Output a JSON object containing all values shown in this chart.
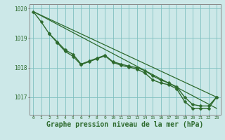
{
  "background_color": "#cce8e8",
  "plot_bg_color": "#cce8e8",
  "grid_color": "#80c0c0",
  "line_color": "#2d6a2d",
  "marker_color": "#2d6a2d",
  "xlabel": "Graphe pression niveau de la mer (hPa)",
  "xlabel_fontsize": 7,
  "xlim": [
    -0.5,
    23.5
  ],
  "ylim": [
    1016.4,
    1020.15
  ],
  "yticks": [
    1017,
    1018,
    1019,
    1020
  ],
  "xticks": [
    0,
    1,
    2,
    3,
    4,
    5,
    6,
    7,
    8,
    9,
    10,
    11,
    12,
    13,
    14,
    15,
    16,
    17,
    18,
    19,
    20,
    21,
    22,
    23
  ],
  "series": [
    {
      "x": [
        0,
        23
      ],
      "y": [
        1019.9,
        1017.0
      ],
      "marker": null,
      "markersize": 0,
      "linewidth": 0.9
    },
    {
      "x": [
        0,
        23
      ],
      "y": [
        1019.9,
        1016.62
      ],
      "marker": null,
      "markersize": 0,
      "linewidth": 0.9
    },
    {
      "x": [
        0,
        1,
        2,
        3,
        4,
        5,
        6,
        7,
        8,
        9,
        10,
        11,
        12,
        13,
        14,
        15,
        16,
        17,
        18,
        19,
        20,
        21,
        22,
        23
      ],
      "y": [
        1019.9,
        1019.55,
        1019.15,
        1018.88,
        1018.6,
        1018.45,
        1018.12,
        1018.22,
        1018.32,
        1018.42,
        1018.2,
        1018.12,
        1018.05,
        1018.0,
        1017.9,
        1017.72,
        1017.58,
        1017.48,
        1017.35,
        1017.0,
        1016.75,
        1016.7,
        1016.7,
        1017.0
      ],
      "marker": "D",
      "markersize": 2.5,
      "linewidth": 1.0
    },
    {
      "x": [
        2,
        3,
        4,
        5,
        6,
        7,
        8,
        9,
        10,
        11,
        12,
        13,
        14,
        15,
        16,
        17,
        18,
        19,
        20,
        21,
        22,
        23
      ],
      "y": [
        1019.15,
        1018.85,
        1018.55,
        1018.38,
        1018.1,
        1018.2,
        1018.3,
        1018.4,
        1018.18,
        1018.08,
        1018.02,
        1017.95,
        1017.82,
        1017.58,
        1017.48,
        1017.42,
        1017.28,
        1016.85,
        1016.62,
        1016.62,
        1016.62,
        1017.0
      ],
      "marker": "D",
      "markersize": 2.5,
      "linewidth": 1.0
    }
  ]
}
